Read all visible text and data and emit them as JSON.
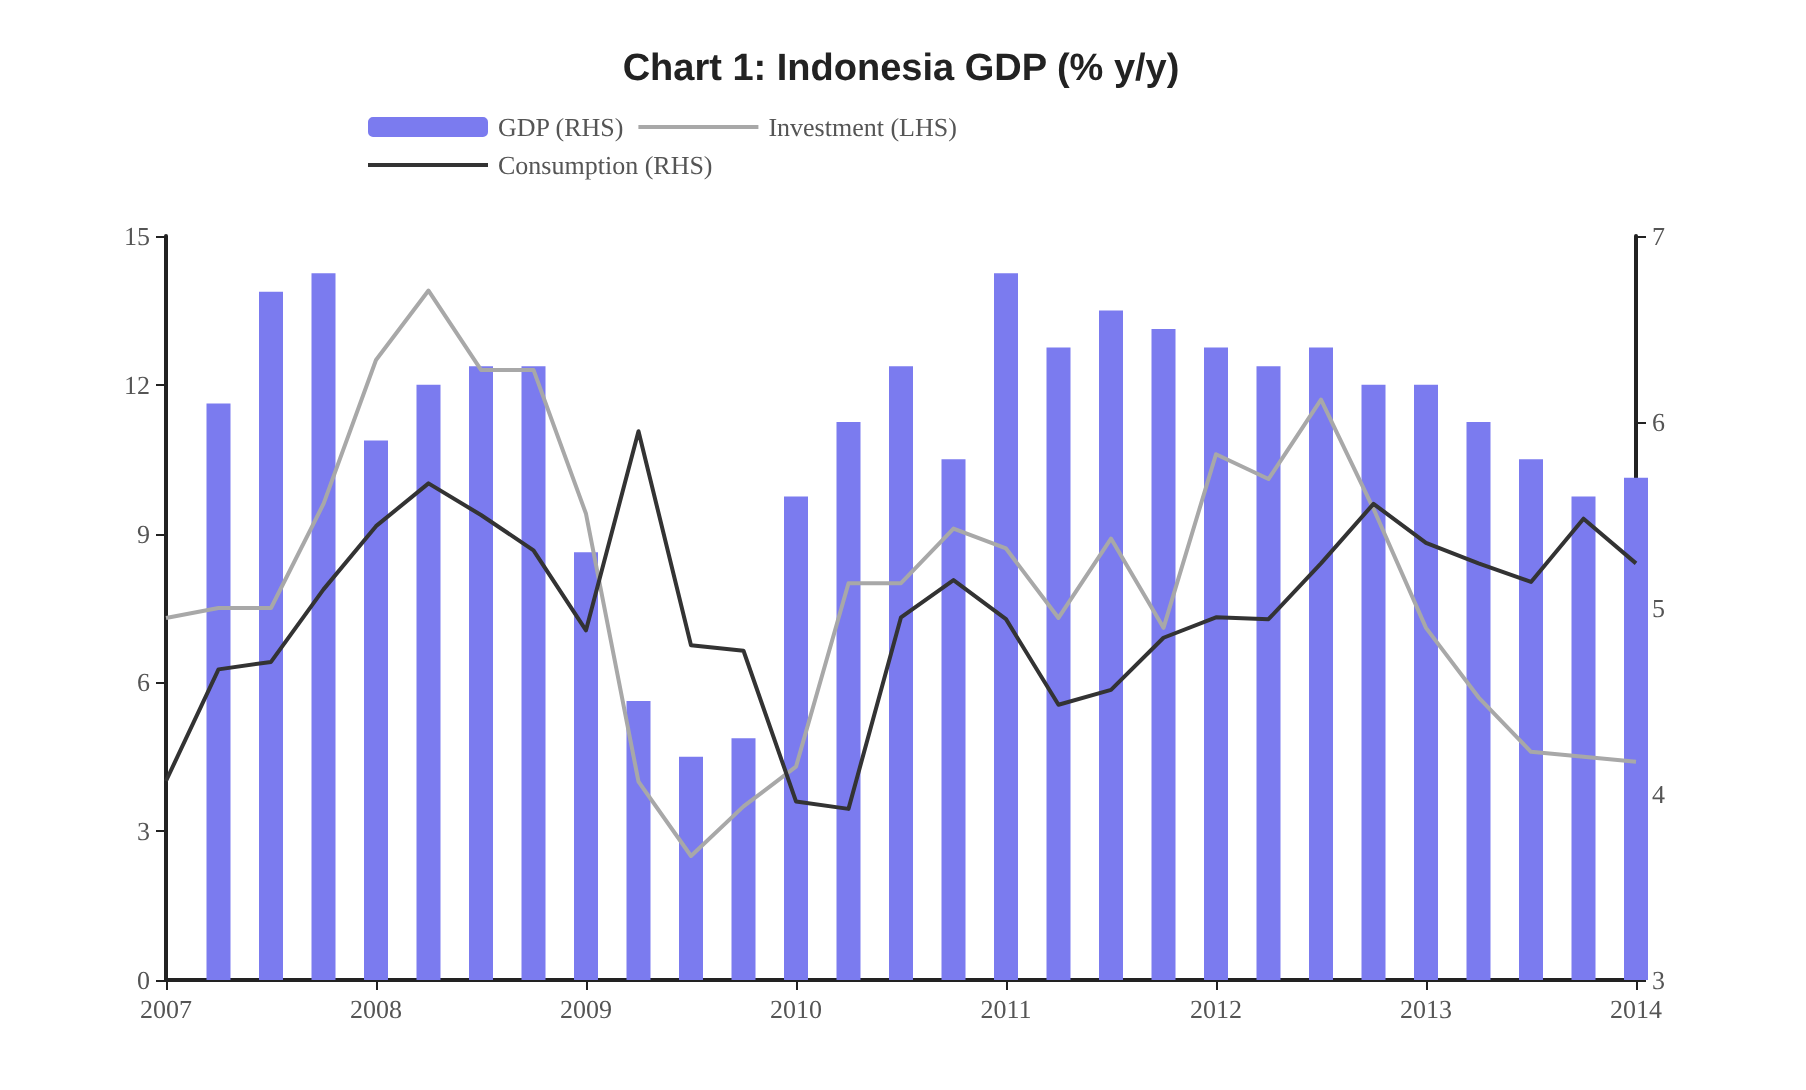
{
  "chart_data": {
    "type": "bar",
    "title": "Chart 1: Indonesia GDP (% y/y)",
    "xlim": [
      2007,
      2014
    ],
    "xticks": [
      2007,
      2008,
      2009,
      2010,
      2011,
      2012,
      2013,
      2014
    ],
    "ylim": [
      0,
      15
    ],
    "yticks": [
      0,
      3,
      6,
      9,
      12,
      15
    ],
    "y2lim": [
      3,
      7
    ],
    "y2ticks": [
      3,
      4,
      5,
      6,
      7
    ],
    "grid": false,
    "legend": "top",
    "series": [
      {
        "name": "GDP (RHS)",
        "axis": "y2",
        "color": "#7b7bef",
        "x": [
          2007.25,
          2007.5,
          2007.75,
          2008,
          2008.25,
          2008.5,
          2008.75,
          2009,
          2009.25,
          2009.5,
          2009.75,
          2010,
          2010.25,
          2010.5,
          2010.75,
          2011,
          2011.25,
          2011.5,
          2011.75,
          2012,
          2012.25,
          2012.5,
          2012.75,
          2013,
          2013.25,
          2013.5,
          2013.75,
          2014
        ],
        "values": [
          6.1,
          6.7,
          6.8,
          5.9,
          6.2,
          6.3,
          6.3,
          5.3,
          4.5,
          4.2,
          4.3,
          5.6,
          6.0,
          6.3,
          5.8,
          6.8,
          6.4,
          6.6,
          6.5,
          6.4,
          6.3,
          6.4,
          6.2,
          6.2,
          6.0,
          5.8,
          5.6,
          5.7
        ]
      },
      {
        "name": "Investment (LHS)",
        "type": "line",
        "color": "#a8a8a8",
        "x": [
          2007,
          2007.25,
          2007.5,
          2007.75,
          2008,
          2008.25,
          2008.5,
          2008.75,
          2009,
          2009.25,
          2009.5,
          2009.75,
          2010,
          2010.25,
          2010.5,
          2010.75,
          2011,
          2011.25,
          2011.5,
          2011.75,
          2012,
          2012.25,
          2012.5,
          2012.75,
          2013,
          2013.25,
          2013.5,
          2013.75,
          2014
        ],
        "values": [
          7.3,
          7.5,
          7.5,
          9.6,
          12.5,
          13.9,
          12.3,
          12.3,
          9.4,
          4.0,
          2.5,
          3.5,
          4.3,
          8.0,
          8.0,
          9.1,
          8.7,
          7.3,
          8.9,
          7.1,
          10.6,
          10.1,
          11.7,
          9.5,
          7.1,
          5.7,
          4.6,
          4.5,
          4.4
        ]
      },
      {
        "name": "Consumption (RHS)",
        "type": "line",
        "axis": "y2",
        "color": "#333333",
        "x": [
          2007,
          2007.25,
          2007.5,
          2007.75,
          2008,
          2008.25,
          2008.5,
          2008.75,
          2009,
          2009.25,
          2009.5,
          2009.75,
          2010,
          2010.25,
          2010.5,
          2010.75,
          2011,
          2011.25,
          2011.5,
          2011.75,
          2012,
          2012.25,
          2012.5,
          2012.75,
          2013,
          2013.25,
          2013.5,
          2013.75,
          2014
        ],
        "values": [
          4.07,
          4.67,
          4.71,
          5.1,
          5.44,
          5.67,
          5.5,
          5.31,
          4.88,
          5.95,
          4.8,
          4.77,
          3.96,
          3.92,
          4.95,
          5.15,
          4.94,
          4.48,
          4.56,
          4.84,
          4.95,
          4.94,
          5.24,
          5.56,
          5.35,
          5.24,
          5.14,
          5.48,
          5.24
        ]
      }
    ]
  }
}
